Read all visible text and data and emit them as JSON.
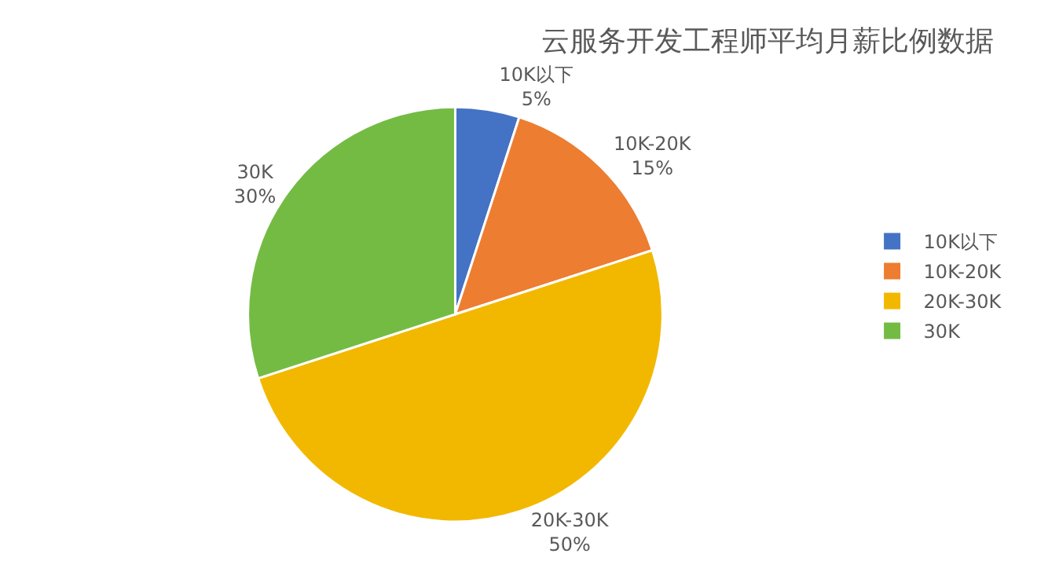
{
  "chart_data": {
    "type": "pie",
    "title": "云服务开发工程师平均月薪比例数据",
    "categories": [
      "10K以下",
      "10K-20K",
      "20K-30K",
      "30K"
    ],
    "values": [
      5,
      15,
      50,
      30
    ],
    "value_labels": [
      "5%",
      "15%",
      "50%",
      "30%"
    ],
    "colors": [
      "#4472c4",
      "#ed7d31",
      "#f2b800",
      "#74bb44"
    ],
    "legend": "right"
  }
}
